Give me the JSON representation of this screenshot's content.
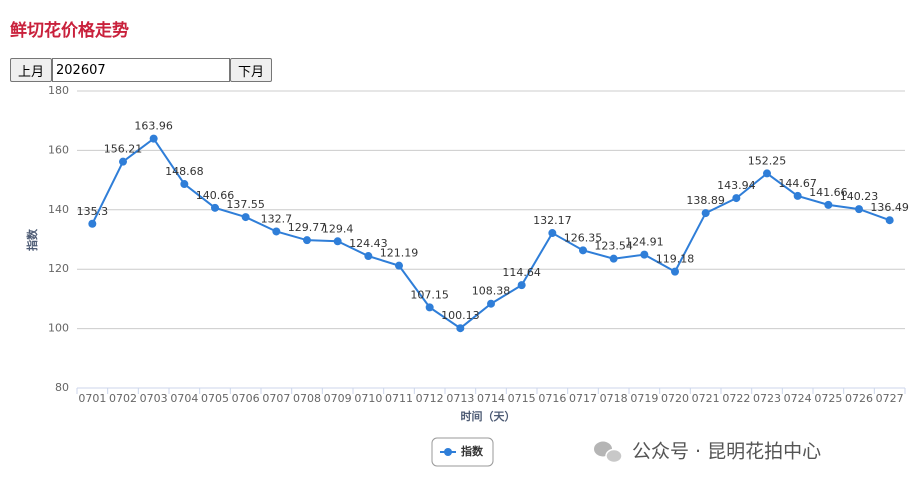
{
  "page": {
    "title": "鲜切花价格走势",
    "prev_button": "上月",
    "month_input": "202607",
    "next_button": "下月",
    "watermark": "公众号 · 昆明花拍中心"
  },
  "chart_data": {
    "type": "line",
    "x_label": "时间（天）",
    "y_label": "指数",
    "categories": [
      "0701",
      "0702",
      "0703",
      "0704",
      "0705",
      "0706",
      "0707",
      "0708",
      "0709",
      "0710",
      "0711",
      "0712",
      "0713",
      "0714",
      "0715",
      "0716",
      "0717",
      "0718",
      "0719",
      "0720",
      "0721",
      "0722",
      "0723",
      "0724",
      "0725",
      "0726",
      "0727"
    ],
    "series": [
      {
        "name": "指数",
        "color": "#2f7ed8",
        "values": [
          135.3,
          156.21,
          163.96,
          148.68,
          140.66,
          137.55,
          132.7,
          129.77,
          129.4,
          124.43,
          121.19,
          107.15,
          100.13,
          108.38,
          114.64,
          132.17,
          126.35,
          123.54,
          124.91,
          119.18,
          138.89,
          143.94,
          152.25,
          144.67,
          141.66,
          140.23,
          136.49
        ]
      }
    ],
    "ylim": [
      80,
      180
    ],
    "yticks": [
      80,
      100,
      120,
      140,
      160,
      180
    ],
    "grid": true,
    "data_labels": true,
    "legend": "bottom"
  }
}
